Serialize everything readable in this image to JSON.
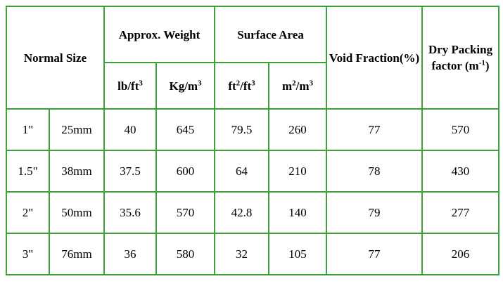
{
  "table": {
    "headers": {
      "nominal_size": "Normal Size",
      "weight_group": "Approx. Weight",
      "surface_group": "Surface Area",
      "void_fraction": "Void Fraction(%)",
      "packing_factor": "Dry Packing factor (m",
      "packing_factor_exp": "-1",
      "packing_factor_close": ")",
      "lb_unit": "lb/ft",
      "lb_unit_exp": "3",
      "kg_unit": "Kg/m",
      "kg_unit_exp": "3",
      "ft_unit_base": "ft",
      "ft_unit_exp1": "2",
      "ft_unit_mid": "/ft",
      "ft_unit_exp2": "3",
      "m_unit_base": "m",
      "m_unit_exp1": "2",
      "m_unit_mid": "/m",
      "m_unit_exp2": "3"
    },
    "rows": [
      [
        "1\"",
        "25mm",
        "40",
        "645",
        "79.5",
        "260",
        "77",
        "570"
      ],
      [
        "1.5\"",
        "38mm",
        "37.5",
        "600",
        "64",
        "210",
        "78",
        "430"
      ],
      [
        "2\"",
        "50mm",
        "35.6",
        "570",
        "42.8",
        "140",
        "79",
        "277"
      ],
      [
        "3\"",
        "76mm",
        "36",
        "580",
        "32",
        "105",
        "77",
        "206"
      ]
    ]
  }
}
